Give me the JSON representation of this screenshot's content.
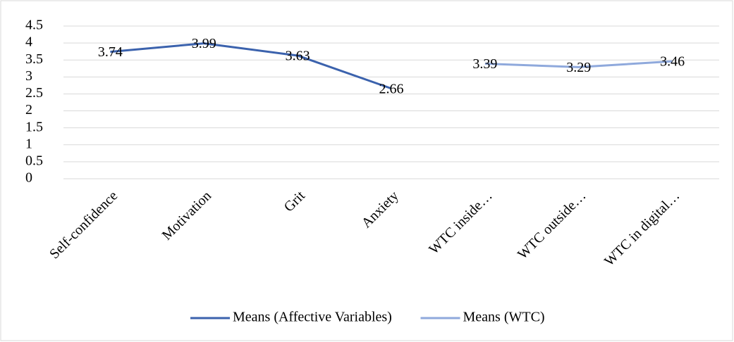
{
  "chart_data": {
    "type": "line",
    "categories": [
      "Self-confidence",
      "Motivation",
      "Grit",
      "Anxiety",
      "WTC inside…",
      "WTC outside…",
      "WTC in digital…"
    ],
    "series": [
      {
        "name": "Means (Affective Variables)",
        "color": "#3b62ad",
        "values": [
          3.74,
          3.99,
          3.63,
          2.66,
          null,
          null,
          null
        ]
      },
      {
        "name": "Means (WTC)",
        "color": "#8fa9dc",
        "values": [
          null,
          null,
          null,
          null,
          3.39,
          3.29,
          3.46
        ]
      }
    ],
    "ylim": [
      0,
      4.5
    ],
    "yticks": [
      0,
      0.5,
      1,
      1.5,
      2,
      2.5,
      3,
      3.5,
      4,
      4.5
    ],
    "grid": true,
    "legend": "bottom"
  }
}
